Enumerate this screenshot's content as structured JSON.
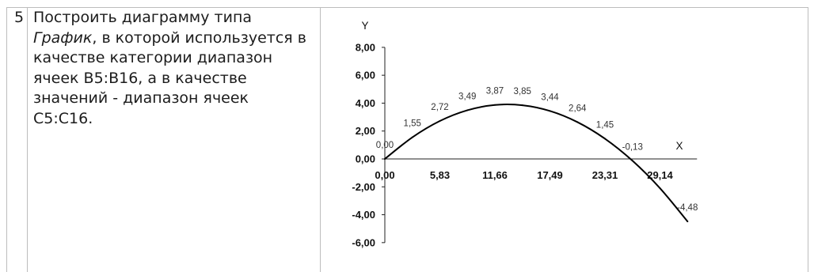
{
  "task": {
    "number": "5",
    "description": {
      "line1": "Построить диаграмму типа",
      "line2_italic": "График",
      "line2_rest": ", в которой используется в",
      "line3": "качестве категории диапазон",
      "line4": "ячеек B5:B16, а в качестве",
      "line5": "значений - диапазон ячеек",
      "line6": "C5:C16."
    }
  },
  "chart_data": {
    "type": "line",
    "xlabel": "X",
    "ylabel": "Y",
    "categories": [
      "0,00",
      "",
      "5,83",
      "",
      "11,66",
      "",
      "17,49",
      "",
      "23,31",
      "",
      "29,14",
      ""
    ],
    "values": [
      0.0,
      1.55,
      2.72,
      3.49,
      3.87,
      3.85,
      3.44,
      2.64,
      1.45,
      -0.13,
      -2.1,
      -4.48
    ],
    "data_labels": [
      "0,00",
      "1,55",
      "2,72",
      "3,49",
      "3,87",
      "3,85",
      "3,44",
      "2,64",
      "1,45",
      "-0,13",
      null,
      "-4,48"
    ],
    "ylim": [
      -6,
      8
    ],
    "y_ticks": [
      8,
      6,
      4,
      2,
      0,
      -2,
      -4,
      -6
    ],
    "y_tick_labels": [
      "8,00",
      "6,00",
      "4,00",
      "2,00",
      "0,00",
      "-2,00",
      "-4,00",
      "-6,00"
    ],
    "grid": false,
    "legend": "none",
    "smooth": true,
    "line_color": "#000000"
  },
  "colors": {
    "table_border": "#bdbdbd",
    "text": "#1c1c1c"
  }
}
